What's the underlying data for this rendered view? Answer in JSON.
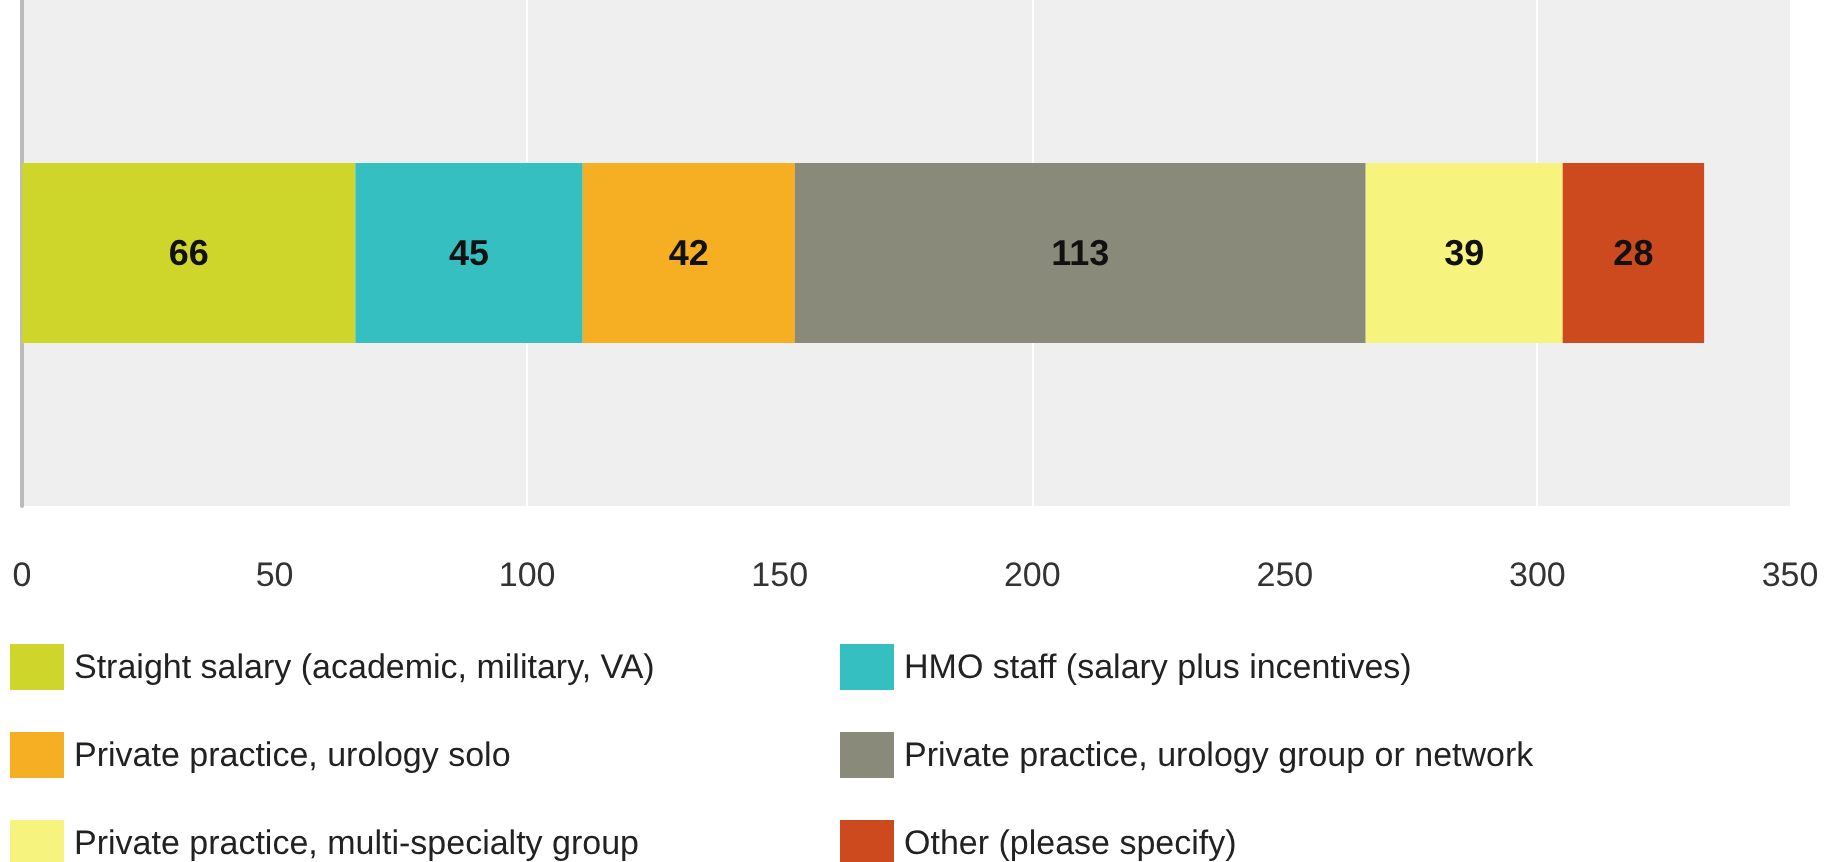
{
  "chart_data": {
    "type": "bar",
    "orientation": "horizontal",
    "stacked": true,
    "categories": [
      null
    ],
    "series": [
      {
        "name": "Straight salary (academic, military, VA)",
        "color": "#cfd62b",
        "values": [
          66
        ]
      },
      {
        "name": "HMO staff (salary plus incentives)",
        "color": "#35bfc0",
        "values": [
          45
        ]
      },
      {
        "name": "Private practice, urology solo",
        "color": "#f6ae22",
        "values": [
          42
        ]
      },
      {
        "name": "Private practice, urology group or network",
        "color": "#8a8a7a",
        "values": [
          113
        ]
      },
      {
        "name": "Private practice, multi-specialty group",
        "color": "#f6f37e",
        "values": [
          39
        ]
      },
      {
        "name": "Other (please specify)",
        "color": "#cc4a1d",
        "values": [
          28
        ]
      }
    ],
    "xlim": [
      0,
      350
    ],
    "xticks": [
      0,
      50,
      100,
      150,
      200,
      250,
      300,
      350
    ],
    "grid": "x",
    "legend": "bottom",
    "data_labels": true
  }
}
